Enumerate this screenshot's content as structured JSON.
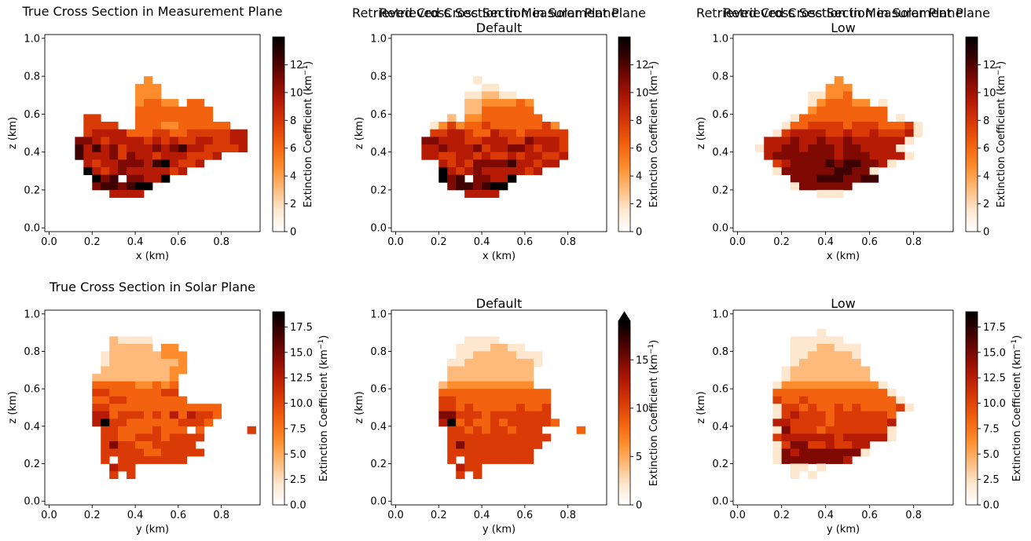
{
  "figure": {
    "colormap": [
      "#ffffff",
      "#fde7cf",
      "#fdba7a",
      "#fd8d2c",
      "#f2620f",
      "#d93a06",
      "#b51b05",
      "#7f0a04",
      "#3d0201",
      "#000000"
    ]
  },
  "chart_data": [
    {
      "type": "heatmap",
      "title": "True Cross Section in Measurement Plane",
      "subtitle": "",
      "xlabel": "x (km)",
      "ylabel": "z (km)",
      "xlim": [
        -0.02,
        0.98
      ],
      "ylim": [
        -0.02,
        1.02
      ],
      "xticks": [
        "0.0",
        "0.2",
        "0.4",
        "0.6",
        "0.8"
      ],
      "yticks": [
        "0.0",
        "0.2",
        "0.4",
        "0.6",
        "0.8",
        "1.0"
      ],
      "grid_origin": [
        0.0,
        0.0
      ],
      "cell_size": [
        0.04,
        0.04
      ],
      "rows": [
        "........................",
        "........................",
        "........................",
        "........................",
        "........................",
        "........................",
        "...........3............",
        "..........333...........",
        "..........333...........",
        "..........34433.44......",
        "..........444444444.....",
        "....55....444444444.....",
        "....5555..44433444444...",
        "....5666644455445555566.",
        "...77656666565655665566.",
        "...86867566676786655556.",
        "...86667576656665556....",
        "....65667776896556......",
        "....965676666656........",
        ".....978.77669..........",
        ".....7887899............",
        ".......6666.............",
        "........................",
        "........................",
        "........................",
        "........................"
      ],
      "colorbar": {
        "label": "Extinction Coefficient",
        "unit": "(km",
        "unit_exp": "−1",
        "unit_close": ")",
        "range": [
          0,
          14
        ],
        "ticks": [
          "0",
          "2",
          "4",
          "6",
          "8",
          "10",
          "12"
        ],
        "extend_max": false
      }
    },
    {
      "type": "heatmap",
      "title": "Retrieved Cross Section in Measurement Plane",
      "subtitle": "Default",
      "xlabel": "x (km)",
      "ylabel": "z (km)",
      "xlim": [
        -0.02,
        0.98
      ],
      "ylim": [
        -0.02,
        1.02
      ],
      "xticks": [
        "0.0",
        "0.2",
        "0.4",
        "0.6",
        "0.8"
      ],
      "yticks": [
        "0.0",
        "0.2",
        "0.4",
        "0.6",
        "0.8",
        "1.0"
      ],
      "grid_origin": [
        0.0,
        0.0
      ],
      "cell_size": [
        0.04,
        0.04
      ],
      "rows": [
        "........................",
        "........................",
        "........................",
        "........................",
        "........................",
        "........................",
        ".........1..............",
        "..........11............",
        "........112211..........",
        "........22333343........",
        "........22444444........",
        "......2.334444444.......",
        "....135344544444453.....",
        "....5566544655455555....",
        "...77666556665576665....",
        "...66766675667765665....",
        "...66556656556566556....",
        ".....65657777866566.....",
        ".....965676666656.......",
        ".....978.77669..........",
        "......7887899...........",
        "........6666............",
        "........................",
        "........................",
        "........................",
        "........................"
      ],
      "colorbar": {
        "label": "Extinction Coefficient",
        "unit": "(km",
        "unit_exp": "−1",
        "unit_close": ")",
        "range": [
          0,
          14
        ],
        "ticks": [
          "0",
          "2",
          "4",
          "6",
          "8",
          "10",
          "12"
        ],
        "extend_max": false
      }
    },
    {
      "type": "heatmap",
      "title": "Retrieved Cross Section in Measurement Plane",
      "subtitle": "Low",
      "xlabel": "x (km)",
      "ylabel": "z (km)",
      "xlim": [
        -0.02,
        0.98
      ],
      "ylim": [
        -0.02,
        1.02
      ],
      "xticks": [
        "0.0",
        "0.2",
        "0.4",
        "0.6",
        "0.8"
      ],
      "yticks": [
        "0.0",
        "0.2",
        "0.4",
        "0.6",
        "0.8",
        "1.0"
      ],
      "grid_origin": [
        0.0,
        0.0
      ],
      "cell_size": [
        0.04,
        0.04
      ],
      "rows": [
        "........................",
        "........................",
        "........................",
        "........................",
        "........................",
        "........................",
        "...........3............",
        "..........333...........",
        "........11334...........",
        "........1344433.1.......",
        "........344444444.......",
        "......14444444444.1.....",
        ".....1445555455544451...",
        "....15666655655655561...",
        "...66676676676666661....",
        "..16677677767766661.....",
        "...67777777677766661....",
        "....56777787887761......",
        "....177777788771........",
        "......7778887788........",
        "......1777777...........",
        ".........111.............",
        "........................",
        "........................",
        "........................",
        "........................"
      ],
      "colorbar": {
        "label": "Extinction Coefficient",
        "unit": "(km",
        "unit_exp": "−1",
        "unit_close": ")",
        "range": [
          0,
          14
        ],
        "ticks": [
          "0",
          "2",
          "4",
          "6",
          "8",
          "10",
          "12"
        ],
        "extend_max": false
      }
    },
    {
      "type": "heatmap",
      "title": "True Cross Section in Solar Plane",
      "subtitle": "",
      "xlabel": "y (km)",
      "ylabel": "z (km)",
      "xlim": [
        -0.02,
        0.98
      ],
      "ylim": [
        -0.02,
        1.02
      ],
      "xticks": [
        "0.0",
        "0.2",
        "0.4",
        "0.6",
        "0.8"
      ],
      "yticks": [
        "0.0",
        "0.2",
        "0.4",
        "0.6",
        "0.8",
        "1.0"
      ],
      "grid_origin": [
        0.0,
        0.0
      ],
      "cell_size": [
        0.04,
        0.04
      ],
      "rows": [
        "........................",
        "........................",
        "........................",
        "........................",
        ".......21111............",
        ".......22222.33.........",
        "......1222222333........",
        "......1222222223........",
        "......2222222233........",
        ".....2222222223.........",
        ".....4444433434.........",
        ".....5544444455.........",
        ".....44554444444........",
        ".....554444444444444....",
        ".....664555454646554....",
        ".....69554444445554.....",
        "......5544445444.4.....5",
        "......554455545555......",
        "......57554455555.......",
        "......555554455555......",
        "......5.55555555........",
        ".......655..............",
        ".......5.5..............",
        "........................",
        "........................",
        "........................"
      ],
      "colorbar": {
        "label": "Extinction Coefficient",
        "unit": "(km",
        "unit_exp": "−1",
        "unit_close": ")",
        "range": [
          0,
          19
        ],
        "ticks": [
          "0.0",
          "2.5",
          "5.0",
          "7.5",
          "10.0",
          "12.5",
          "15.0",
          "17.5"
        ],
        "extend_max": false
      }
    },
    {
      "type": "heatmap",
      "title": "Retrieved Cross Section in Solar Plane",
      "subtitle": "Default",
      "xlabel": "y (km)",
      "ylabel": "z (km)",
      "xlim": [
        -0.02,
        0.98
      ],
      "ylim": [
        -0.02,
        1.02
      ],
      "xticks": [
        "0.0",
        "0.2",
        "0.4",
        "0.6",
        "0.8"
      ],
      "yticks": [
        "0.0",
        "0.2",
        "0.4",
        "0.6",
        "0.8",
        "1.0"
      ],
      "grid_origin": [
        0.0,
        0.0
      ],
      "cell_size": [
        0.04,
        0.04
      ],
      "rows": [
        "........................",
        "........................",
        "........................",
        "........................",
        "........1111............",
        ".......11112211.........",
        ".......1122222111.......",
        "......11222222221.......",
        "......2222222222........",
        "......2222222222........",
        ".....23333333333........",
        ".....4444444444444......",
        ".....5544444444444......",
        ".....5545444445445......",
        ".....7755545555555......",
        ".....69454454555554.....",
        "......55454554555....4..",
        "......555555555555......",
        "......57555555555.......",
        "......5555555555........",
        "......5.55555555........",
        ".......655..............",
        ".......5.5..............",
        "........................",
        "........................",
        "........................"
      ],
      "colorbar": {
        "label": "Extinction Coefficient",
        "unit": "(km",
        "unit_exp": "−1",
        "unit_close": ")",
        "range": [
          0,
          19
        ],
        "ticks": [
          "0",
          "5",
          "10",
          "15"
        ],
        "extend_max": true
      }
    },
    {
      "type": "heatmap",
      "title": "Retrieved Cross Section in Solar Plane",
      "subtitle": "Low",
      "xlabel": "y (km)",
      "ylabel": "z (km)",
      "xlim": [
        -0.02,
        0.98
      ],
      "ylim": [
        -0.02,
        1.02
      ],
      "xticks": [
        "0.0",
        "0.2",
        "0.4",
        "0.6",
        "0.8"
      ],
      "yticks": [
        "0.0",
        "0.2",
        "0.4",
        "0.6",
        "0.8",
        "1.0"
      ],
      "grid_origin": [
        0.0,
        0.0
      ],
      "cell_size": [
        0.04,
        0.04
      ],
      "rows": [
        "........................",
        "........................",
        "........................",
        ".........1..............",
        "......111111............",
        "......11122111..........",
        "......11222221..........",
        "......12222222..........",
        ".....1222222222.........",
        ".....1222222222.........",
        "....1333333333331.......",
        "....44444444444441......",
        "....544544444444441.....",
        "....1554544545444451....",
        "....15655545555554......",
        "....66555545555556......",
        "....17555455555551......",
        "....56666665666661......",
        "....15775565566.........",
        "....17677777771.........",
        "....177777776...........",
        "......11.1..............",
        "......1.1...............",
        "........................",
        "........................",
        "........................"
      ],
      "colorbar": {
        "label": "Extinction Coefficient",
        "unit": "(km",
        "unit_exp": "−1",
        "unit_close": ")",
        "range": [
          0,
          19
        ],
        "ticks": [
          "0.0",
          "2.5",
          "5.0",
          "7.5",
          "10.0",
          "12.5",
          "15.0",
          "17.5"
        ],
        "extend_max": false
      }
    }
  ]
}
